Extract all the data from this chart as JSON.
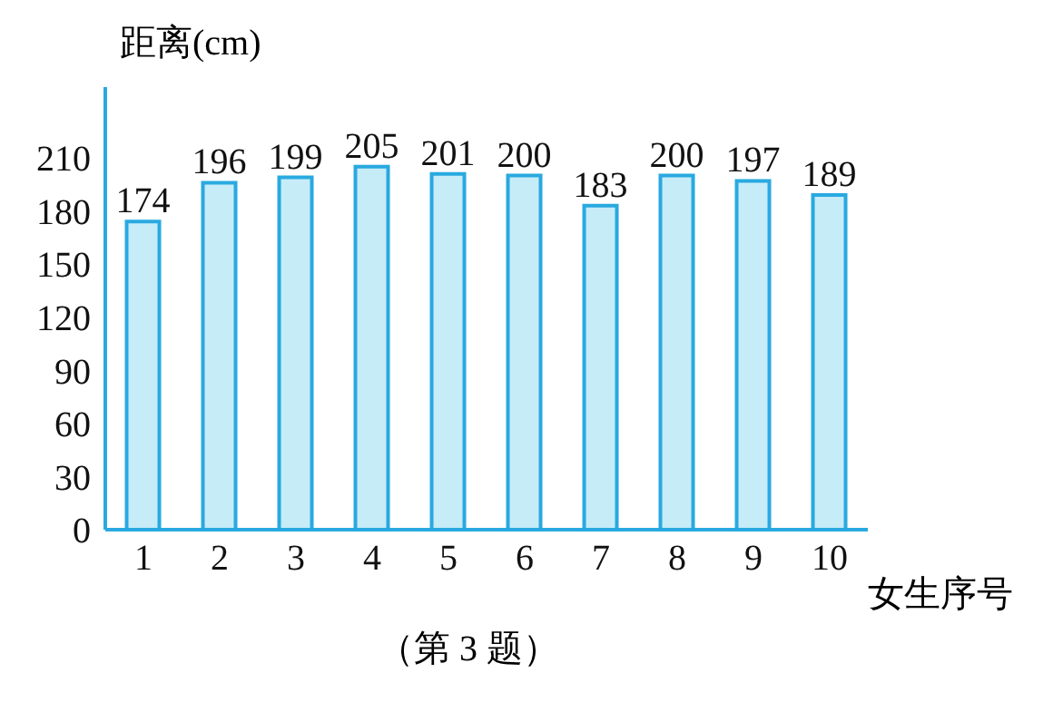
{
  "chart_data": {
    "type": "bar",
    "ylabel": "距离(cm)",
    "xlabel": "女生序号",
    "annotations": [
      "（第 3 题）"
    ],
    "categories": [
      "1",
      "2",
      "3",
      "4",
      "5",
      "6",
      "7",
      "8",
      "9",
      "10"
    ],
    "values": [
      174,
      196,
      199,
      205,
      201,
      200,
      183,
      200,
      197,
      189
    ],
    "color": "#c6ecf8",
    "ylim": [
      0,
      250
    ],
    "yticks": [
      0,
      30,
      60,
      90,
      120,
      150,
      180,
      210
    ],
    "grid": false,
    "data_labels": true
  }
}
